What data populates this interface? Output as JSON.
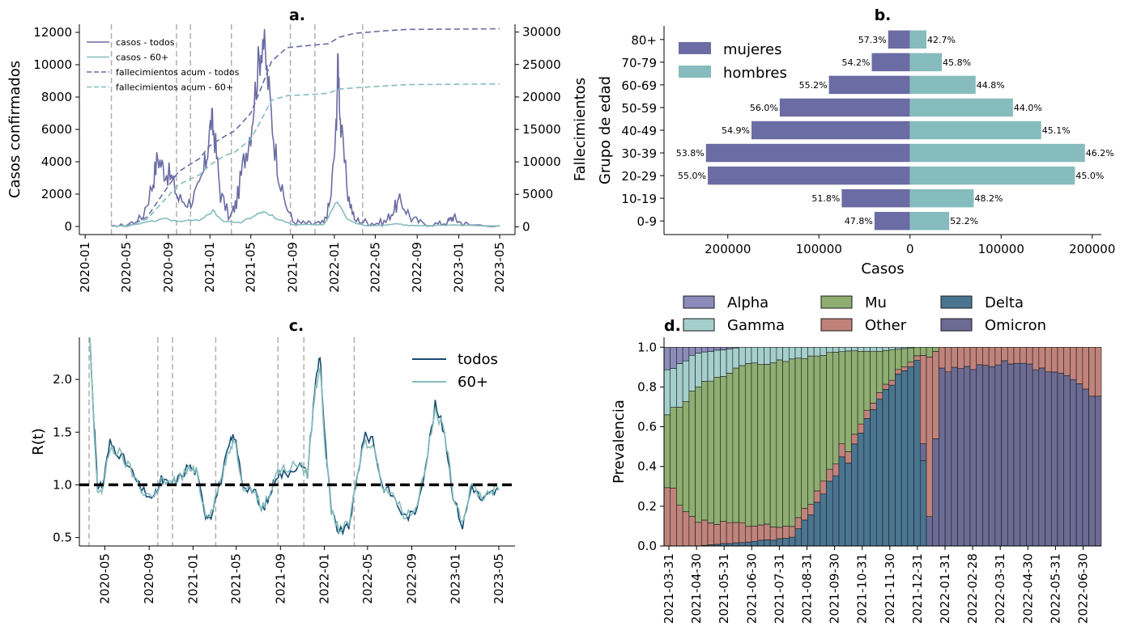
{
  "colors": {
    "todos": "#6b6ca3",
    "sesenta": "#86bcbd",
    "rt_todos": "#154c70",
    "rt_sesenta": "#86bcbd",
    "mujeres": "#6b6ca3",
    "hombres": "#86bcbd",
    "vline": "#b0b0b0",
    "alpha": "#8b8cba",
    "gamma": "#a5cfcc",
    "mu": "#8fae72",
    "other": "#c0837b",
    "delta": "#4a7591",
    "omicron": "#6b6b94"
  },
  "chart_data": [
    {
      "panel": "a",
      "type": "line",
      "title": "a.",
      "ylabel": "Casos confirmados",
      "ylabel_right": "Fallecimientos",
      "ylim": [
        -500,
        12500
      ],
      "ylim_right": [
        -1200,
        31200
      ],
      "xlim": [
        "2019-12-15",
        "2023-06-15"
      ],
      "yticks": [
        0,
        2000,
        4000,
        6000,
        8000,
        10000,
        12000
      ],
      "yticks_right": [
        0,
        5000,
        10000,
        15000,
        20000,
        25000,
        30000
      ],
      "xticks": [
        "2020-01",
        "2020-05",
        "2020-09",
        "2021-01",
        "2021-05",
        "2021-09",
        "2022-01",
        "2022-05",
        "2022-09",
        "2023-01",
        "2023-05"
      ],
      "vlines": [
        "2020-03-18",
        "2020-09-25",
        "2020-11-05",
        "2021-03-05",
        "2021-08-25",
        "2021-11-05",
        "2022-03-25"
      ],
      "legend": [
        "casos - todos",
        "casos - 60+",
        "fallecimientos acum - todos",
        "fallecimientos acum - 60+"
      ],
      "series": [
        {
          "name": "casos - todos",
          "axis": "left",
          "style": "solid",
          "x": [
            "2020-03-18",
            "2020-05-01",
            "2020-06-15",
            "2020-07-15",
            "2020-08-01",
            "2020-08-20",
            "2020-09-10",
            "2020-10-01",
            "2020-11-01",
            "2020-12-01",
            "2020-12-20",
            "2021-01-05",
            "2021-01-15",
            "2021-02-01",
            "2021-03-01",
            "2021-03-20",
            "2021-04-10",
            "2021-05-01",
            "2021-05-20",
            "2021-06-05",
            "2021-06-20",
            "2021-07-10",
            "2021-08-01",
            "2021-09-01",
            "2021-10-01",
            "2021-11-01",
            "2021-12-01",
            "2021-12-20",
            "2022-01-05",
            "2022-01-12",
            "2022-01-20",
            "2022-02-10",
            "2022-03-01",
            "2022-04-01",
            "2022-05-01",
            "2022-06-01",
            "2022-06-25",
            "2022-07-15",
            "2022-08-15",
            "2022-09-15",
            "2022-11-01",
            "2022-12-01",
            "2022-12-15",
            "2023-01-01",
            "2023-02-01",
            "2023-05-01"
          ],
          "y": [
            0,
            100,
            500,
            2500,
            4300,
            3500,
            3000,
            1700,
            1500,
            2300,
            4000,
            6600,
            5500,
            2000,
            500,
            1500,
            4000,
            6000,
            9500,
            11800,
            9000,
            5000,
            2000,
            300,
            200,
            150,
            200,
            1500,
            5500,
            10300,
            6000,
            2000,
            400,
            300,
            200,
            300,
            1100,
            1600,
            500,
            200,
            150,
            300,
            600,
            300,
            100,
            50
          ]
        },
        {
          "name": "casos - 60+",
          "axis": "left",
          "style": "solid",
          "x": [
            "2020-03-18",
            "2020-05-01",
            "2020-07-15",
            "2020-08-20",
            "2020-10-01",
            "2020-12-01",
            "2021-01-10",
            "2021-02-10",
            "2021-04-01",
            "2021-05-15",
            "2021-06-10",
            "2021-07-15",
            "2021-09-01",
            "2021-12-01",
            "2022-01-10",
            "2022-02-10",
            "2022-04-01",
            "2022-07-01",
            "2022-08-15",
            "2022-12-15",
            "2023-05-01"
          ],
          "y": [
            0,
            50,
            300,
            500,
            300,
            400,
            950,
            300,
            250,
            700,
            950,
            500,
            100,
            100,
            1600,
            400,
            50,
            150,
            50,
            80,
            20
          ]
        },
        {
          "name": "fallecimientos acum - todos",
          "axis": "right",
          "style": "dashed",
          "x": [
            "2020-05-01",
            "2020-07-01",
            "2020-08-15",
            "2020-10-01",
            "2020-12-01",
            "2021-01-01",
            "2021-02-15",
            "2021-03-15",
            "2021-05-01",
            "2021-06-01",
            "2021-07-01",
            "2021-08-15",
            "2021-11-01",
            "2021-12-15",
            "2022-01-15",
            "2022-03-01",
            "2022-06-01",
            "2022-08-01",
            "2023-05-01"
          ],
          "y": [
            0,
            1500,
            5000,
            8500,
            10500,
            12500,
            14000,
            14800,
            17500,
            21500,
            25500,
            27600,
            28000,
            28200,
            29200,
            29800,
            30200,
            30400,
            30500
          ]
        },
        {
          "name": "fallecimientos acum - 60+",
          "axis": "right",
          "style": "dashed",
          "x": [
            "2020-05-01",
            "2020-07-01",
            "2020-08-15",
            "2020-10-01",
            "2020-12-01",
            "2021-01-01",
            "2021-02-15",
            "2021-03-15",
            "2021-05-01",
            "2021-06-01",
            "2021-07-01",
            "2021-08-15",
            "2021-11-01",
            "2021-12-15",
            "2022-01-15",
            "2022-03-01",
            "2022-06-01",
            "2022-08-01",
            "2023-05-01"
          ],
          "y": [
            0,
            1200,
            3800,
            6500,
            8000,
            9500,
            11000,
            11500,
            13500,
            16500,
            19500,
            20200,
            20400,
            20600,
            21200,
            21400,
            21700,
            21900,
            22000
          ]
        }
      ]
    },
    {
      "panel": "b",
      "type": "bar",
      "orientation": "horizontal",
      "title": "b.",
      "xlabel": "Casos",
      "ylabel": "Grupo de edad",
      "xlim": [
        -270000,
        210000
      ],
      "xticks": [
        -200000,
        -100000,
        0,
        100000,
        200000
      ],
      "xtick_labels": [
        "200000",
        "100000",
        "0",
        "100000",
        "200000"
      ],
      "categories": [
        "0-9",
        "10-19",
        "20-29",
        "30-39",
        "40-49",
        "50-59",
        "60-69",
        "70-79",
        "80+"
      ],
      "legend": [
        "mujeres",
        "hombres"
      ],
      "series": [
        {
          "name": "mujeres",
          "values": [
            39000,
            75000,
            222000,
            224000,
            174000,
            143000,
            89000,
            42000,
            24000
          ],
          "labels": [
            "47.8%",
            "51.8%",
            "55.0%",
            "53.8%",
            "54.9%",
            "56.0%",
            "55.2%",
            "54.2%",
            "57.3%"
          ]
        },
        {
          "name": "hombres",
          "values": [
            43000,
            70000,
            181000,
            192000,
            144000,
            113000,
            72000,
            35000,
            18000
          ],
          "labels": [
            "52.2%",
            "48.2%",
            "45.0%",
            "46.2%",
            "45.1%",
            "44.0%",
            "44.8%",
            "45.8%",
            "42.7%"
          ]
        }
      ]
    },
    {
      "panel": "c",
      "type": "line",
      "title": "c.",
      "ylabel": "R(t)",
      "ylim": [
        0.42,
        2.4
      ],
      "xlim": [
        "2020-02-20",
        "2023-06-15"
      ],
      "yticks": [
        0.5,
        1.0,
        1.5,
        2.0
      ],
      "ytick_labels": [
        "0.5",
        "1.0",
        "1.5",
        "2.0"
      ],
      "xticks": [
        "2020-05",
        "2020-09",
        "2021-01",
        "2021-05",
        "2021-09",
        "2022-01",
        "2022-05",
        "2022-09",
        "2023-01",
        "2023-05"
      ],
      "hline": 1.0,
      "vlines": [
        "2020-03-18",
        "2020-09-25",
        "2020-11-05",
        "2021-03-05",
        "2021-08-25",
        "2021-11-05",
        "2022-03-25"
      ],
      "legend": [
        "todos",
        "60+"
      ],
      "series": [
        {
          "name": "todos",
          "x": [
            "2020-03-20",
            "2020-04-01",
            "2020-04-10",
            "2020-04-25",
            "2020-05-15",
            "2020-06-10",
            "2020-07-10",
            "2020-08-10",
            "2020-09-15",
            "2020-10-05",
            "2020-10-25",
            "2020-11-20",
            "2020-12-20",
            "2021-01-10",
            "2021-02-05",
            "2021-02-20",
            "2021-03-20",
            "2021-04-10",
            "2021-04-25",
            "2021-05-20",
            "2021-06-20",
            "2021-07-10",
            "2021-08-01",
            "2021-08-20",
            "2021-09-15",
            "2021-10-20",
            "2021-11-15",
            "2021-12-05",
            "2021-12-20",
            "2022-01-01",
            "2022-01-20",
            "2022-02-10",
            "2022-03-10",
            "2022-03-30",
            "2022-04-20",
            "2022-05-15",
            "2022-06-10",
            "2022-07-10",
            "2022-08-10",
            "2022-09-10",
            "2022-10-10",
            "2022-11-05",
            "2022-12-01",
            "2022-12-25",
            "2023-01-20",
            "2023-02-15",
            "2023-03-15",
            "2023-04-10",
            "2023-05-01"
          ],
          "y": [
            2.4,
            1.6,
            1.0,
            1.0,
            1.4,
            1.3,
            1.15,
            0.95,
            0.87,
            1.05,
            1.0,
            1.05,
            1.18,
            1.12,
            0.72,
            0.72,
            1.05,
            1.35,
            1.48,
            1.0,
            0.95,
            0.75,
            0.88,
            1.1,
            1.1,
            1.2,
            1.1,
            1.9,
            2.25,
            1.5,
            0.75,
            0.55,
            0.6,
            1.0,
            1.45,
            1.45,
            1.0,
            0.9,
            0.7,
            0.72,
            1.2,
            1.75,
            1.5,
            0.9,
            0.6,
            1.0,
            0.85,
            0.92,
            0.95
          ]
        },
        {
          "name": "60+",
          "x": [
            "2020-03-20",
            "2020-04-01",
            "2020-04-10",
            "2020-04-25",
            "2020-05-15",
            "2020-06-10",
            "2020-07-10",
            "2020-08-10",
            "2020-09-15",
            "2020-10-05",
            "2020-10-25",
            "2020-11-20",
            "2020-12-20",
            "2021-01-10",
            "2021-02-05",
            "2021-02-20",
            "2021-03-20",
            "2021-04-10",
            "2021-04-25",
            "2021-05-20",
            "2021-06-20",
            "2021-07-10",
            "2021-08-01",
            "2021-08-20",
            "2021-09-15",
            "2021-10-20",
            "2021-11-15",
            "2021-12-05",
            "2021-12-20",
            "2022-01-01",
            "2022-01-20",
            "2022-02-10",
            "2022-03-10",
            "2022-03-30",
            "2022-04-20",
            "2022-05-15",
            "2022-06-10",
            "2022-07-10",
            "2022-08-10",
            "2022-09-10",
            "2022-10-10",
            "2022-11-05",
            "2022-12-01",
            "2022-12-25",
            "2023-01-20",
            "2023-02-15",
            "2023-03-15",
            "2023-04-10",
            "2023-05-01"
          ],
          "y": [
            2.4,
            1.5,
            0.95,
            0.95,
            1.35,
            1.3,
            1.15,
            0.95,
            0.88,
            1.05,
            1.0,
            1.05,
            1.15,
            1.12,
            0.72,
            0.75,
            1.05,
            1.3,
            1.45,
            1.0,
            0.95,
            0.78,
            0.9,
            1.12,
            1.15,
            1.2,
            1.1,
            1.85,
            2.15,
            1.45,
            0.75,
            0.58,
            0.62,
            1.0,
            1.4,
            1.4,
            1.0,
            0.92,
            0.72,
            0.75,
            1.2,
            1.7,
            1.5,
            0.92,
            0.65,
            1.0,
            0.88,
            0.95,
            0.95
          ]
        }
      ]
    },
    {
      "panel": "d",
      "type": "bar",
      "stacked": true,
      "title": "d.",
      "ylabel": "Prevalencia",
      "ylim": [
        0.0,
        1.05
      ],
      "yticks": [
        0.0,
        0.2,
        0.4,
        0.6,
        0.8,
        1.0
      ],
      "ytick_labels": [
        "0.0",
        "0.2",
        "0.4",
        "0.6",
        "0.8",
        "1.0"
      ],
      "xticks": [
        "2021-03-31",
        "2021-04-30",
        "2021-05-31",
        "2021-06-30",
        "2021-07-31",
        "2021-08-31",
        "2021-09-30",
        "2021-10-31",
        "2021-11-30",
        "2021-12-31",
        "2022-01-31",
        "2022-02-28",
        "2022-03-31",
        "2022-04-30",
        "2022-05-31",
        "2022-06-30"
      ],
      "legend": [
        "Alpha",
        "Gamma",
        "Mu",
        "Other",
        "Delta",
        "Omicron"
      ],
      "stack_order": [
        "Delta",
        "Omicron",
        "Other",
        "Mu",
        "Gamma",
        "Alpha"
      ],
      "keypoints": [
        {
          "t": 0,
          "Delta": 0.0,
          "Omicron": 0.0,
          "Other": 0.3,
          "Mu": 0.35,
          "Gamma": 0.23,
          "Alpha": 0.12
        },
        {
          "t": 5,
          "Delta": 0.0,
          "Omicron": 0.0,
          "Other": 0.12,
          "Mu": 0.68,
          "Gamma": 0.17,
          "Alpha": 0.03
        },
        {
          "t": 12,
          "Delta": 0.02,
          "Omicron": 0.0,
          "Other": 0.1,
          "Mu": 0.78,
          "Gamma": 0.1,
          "Alpha": 0.0
        },
        {
          "t": 20,
          "Delta": 0.04,
          "Omicron": 0.0,
          "Other": 0.05,
          "Mu": 0.85,
          "Gamma": 0.06,
          "Alpha": 0.0
        },
        {
          "t": 28,
          "Delta": 0.4,
          "Omicron": 0.0,
          "Other": 0.06,
          "Mu": 0.52,
          "Gamma": 0.02,
          "Alpha": 0.0
        },
        {
          "t": 34,
          "Delta": 0.75,
          "Omicron": 0.0,
          "Other": 0.03,
          "Mu": 0.2,
          "Gamma": 0.02,
          "Alpha": 0.0
        },
        {
          "t": 40,
          "Delta": 0.94,
          "Omicron": 0.0,
          "Other": 0.02,
          "Mu": 0.04,
          "Gamma": 0.0,
          "Alpha": 0.0
        },
        {
          "t": 42,
          "Delta": 0.0,
          "Omicron": 0.15,
          "Other": 0.8,
          "Mu": 0.05,
          "Gamma": 0.0,
          "Alpha": 0.0
        },
        {
          "t": 44,
          "Delta": 0.0,
          "Omicron": 0.88,
          "Other": 0.12,
          "Mu": 0.0,
          "Gamma": 0.0,
          "Alpha": 0.0
        },
        {
          "t": 55,
          "Delta": 0.0,
          "Omicron": 0.92,
          "Other": 0.08,
          "Mu": 0.0,
          "Gamma": 0.0,
          "Alpha": 0.0
        },
        {
          "t": 65,
          "Delta": 0.0,
          "Omicron": 0.85,
          "Other": 0.15,
          "Mu": 0.0,
          "Gamma": 0.0,
          "Alpha": 0.0
        },
        {
          "t": 69,
          "Delta": 0.0,
          "Omicron": 0.72,
          "Other": 0.28,
          "Mu": 0.0,
          "Gamma": 0.0,
          "Alpha": 0.0
        }
      ],
      "n_bars": 70
    }
  ]
}
